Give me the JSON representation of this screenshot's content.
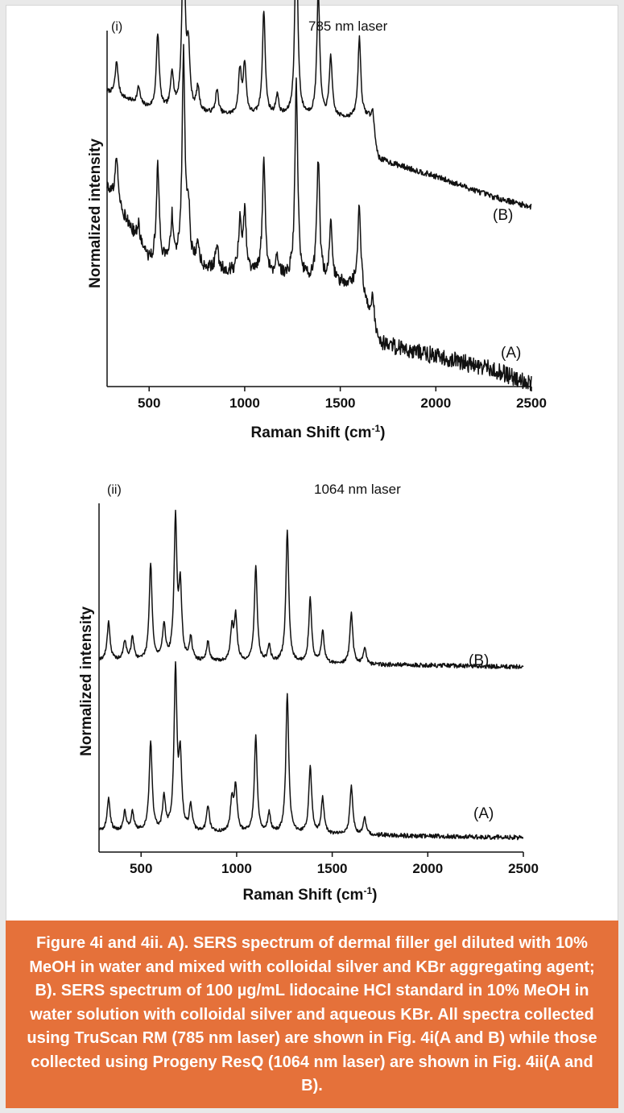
{
  "chart_data": [
    {
      "type": "line",
      "panel": "(i)",
      "title": "785 nm laser",
      "xlabel": "Raman Shift (cm",
      "xlabel_sup": "-1",
      "xlabel_end": ")",
      "ylabel": "Normalized intensity",
      "xlim": [
        280,
        2500
      ],
      "xticks": [
        500,
        1000,
        1500,
        2000,
        2500
      ],
      "xtick_labels": [
        "500",
        "1000",
        "1500",
        "2000",
        "2500"
      ],
      "ylim": [
        0,
        1
      ],
      "y_axis_tick_labels": false,
      "grid": false,
      "peaks_cm-1": [
        330,
        445,
        545,
        620,
        680,
        705,
        755,
        855,
        975,
        1000,
        1100,
        1170,
        1270,
        1385,
        1450,
        1600,
        1670
      ],
      "series": [
        {
          "name": "(B)",
          "label": "(B)",
          "offset": 0.52,
          "noise": 0.006,
          "baseline": [
            [
              280,
              0.34
            ],
            [
              500,
              0.29
            ],
            [
              900,
              0.27
            ],
            [
              1650,
              0.26
            ],
            [
              1700,
              0.14
            ],
            [
              2000,
              0.09
            ],
            [
              2300,
              0.03
            ],
            [
              2500,
              0.0
            ]
          ],
          "peak_heights": [
            0.1,
            0.05,
            0.22,
            0.11,
            0.58,
            0.17,
            0.07,
            0.07,
            0.13,
            0.15,
            0.31,
            0.06,
            0.57,
            0.37,
            0.18,
            0.24,
            0.07
          ]
        },
        {
          "name": "(A)",
          "label": "(A)",
          "offset": 0.0,
          "noise": 0.018,
          "baseline": [
            [
              280,
              0.58
            ],
            [
              500,
              0.36
            ],
            [
              900,
              0.33
            ],
            [
              1600,
              0.29
            ],
            [
              1700,
              0.12
            ],
            [
              2000,
              0.08
            ],
            [
              2300,
              0.04
            ],
            [
              2500,
              0.0
            ]
          ],
          "peak_heights": [
            0.15,
            0.05,
            0.28,
            0.13,
            0.62,
            0.16,
            0.07,
            0.07,
            0.14,
            0.17,
            0.34,
            0.06,
            0.57,
            0.35,
            0.17,
            0.24,
            0.09
          ]
        }
      ]
    },
    {
      "type": "line",
      "panel": "(ii)",
      "title": "1064 nm laser",
      "xlabel": "Raman Shift (cm",
      "xlabel_sup": "-1",
      "xlabel_end": ")",
      "ylabel": "Normalized intensity",
      "xlim": [
        280,
        2500
      ],
      "xticks": [
        500,
        1000,
        1500,
        2000,
        2500
      ],
      "xtick_labels": [
        "500",
        "1000",
        "1500",
        "2000",
        "2500"
      ],
      "ylim": [
        0,
        1
      ],
      "y_axis_tick_labels": false,
      "grid": false,
      "peaks_cm-1": [
        330,
        415,
        455,
        550,
        620,
        680,
        705,
        760,
        850,
        975,
        995,
        1100,
        1170,
        1265,
        1385,
        1450,
        1600,
        1670
      ],
      "series": [
        {
          "name": "(B)",
          "label": "(B)",
          "offset": 0.53,
          "noise": 0.005,
          "baseline": [
            [
              280,
              0.02
            ],
            [
              2500,
              0.0
            ]
          ],
          "peak_heights": [
            0.12,
            0.06,
            0.07,
            0.3,
            0.11,
            0.44,
            0.22,
            0.07,
            0.06,
            0.1,
            0.14,
            0.3,
            0.05,
            0.41,
            0.2,
            0.1,
            0.16,
            0.05
          ]
        },
        {
          "name": "(A)",
          "label": "(A)",
          "offset": 0.0,
          "noise": 0.005,
          "baseline": [
            [
              280,
              0.02
            ],
            [
              2500,
              0.0
            ]
          ],
          "peak_heights": [
            0.1,
            0.06,
            0.06,
            0.28,
            0.1,
            0.5,
            0.22,
            0.08,
            0.08,
            0.1,
            0.14,
            0.3,
            0.06,
            0.43,
            0.21,
            0.11,
            0.15,
            0.05
          ]
        }
      ]
    }
  ],
  "caption": "Figure 4i and 4ii. A). SERS spectrum of dermal filler gel diluted with 10% MeOH in water and mixed with colloidal silver and KBr aggregating agent; B). SERS spectrum of 100 µg/mL lidocaine HCl standard in 10% MeOH in water solution with colloidal silver and aqueous KBr. All spectra collected using TruScan RM (785 nm laser) are shown in Fig. 4i(A and B) while those collected using Progeny ResQ (1064 nm laser) are shown in Fig. 4ii(A and B).",
  "colors": {
    "line": "#111111",
    "caption_bg": "#e5713a",
    "caption_text": "#ffffff",
    "page_bg": "#e9e9e9"
  }
}
